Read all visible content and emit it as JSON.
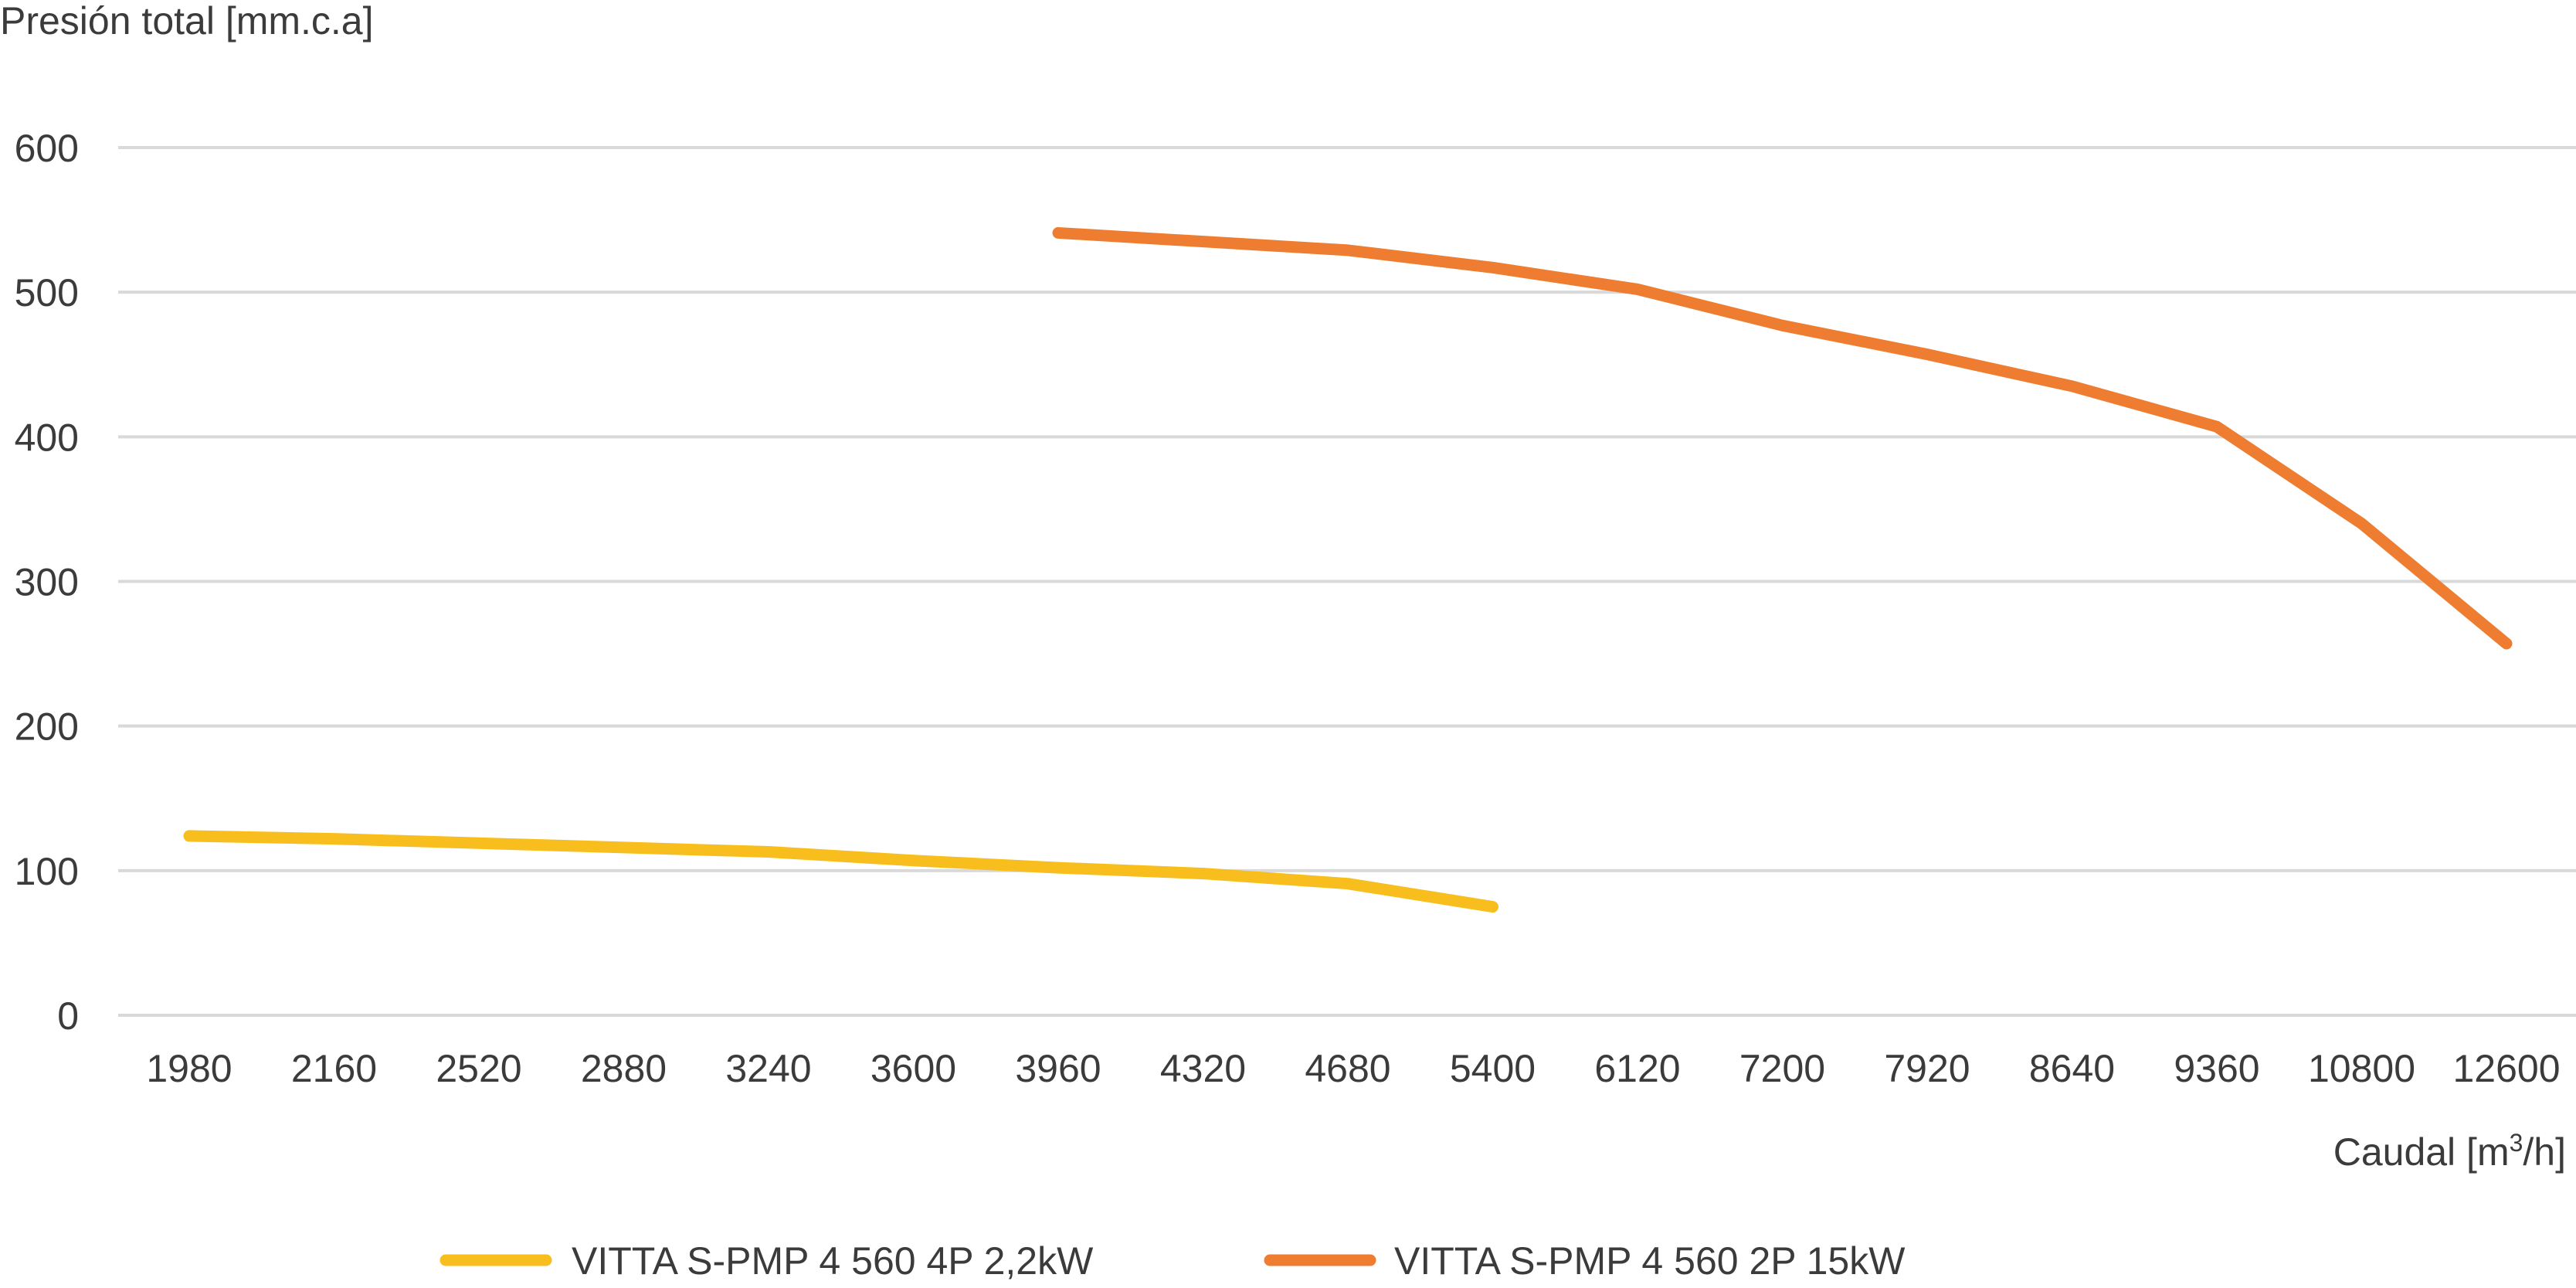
{
  "chart_data": {
    "type": "line",
    "ylabel": "Presión total [mm.c.a]",
    "xlabel": {
      "prefix": "Caudal [m",
      "superscript": "3",
      "suffix": "/h]"
    },
    "categories": [
      "1980",
      "2160",
      "2520",
      "2880",
      "3240",
      "3600",
      "3960",
      "4320",
      "4680",
      "5400",
      "6120",
      "7200",
      "7920",
      "8640",
      "9360",
      "10800",
      "12600"
    ],
    "y_ticks": [
      0,
      100,
      200,
      300,
      400,
      500,
      600
    ],
    "ylim": [
      0,
      600
    ],
    "grid": true,
    "legend_position": "bottom",
    "series": [
      {
        "name": "VITTA S-PMP 4 560 4P 2,2kW",
        "color": "#F7BE1D",
        "values": [
          124,
          122,
          119,
          116,
          113,
          107,
          102,
          98,
          91,
          75,
          null,
          null,
          null,
          null,
          null,
          null,
          null
        ]
      },
      {
        "name": "VITTA S-PMP 4 560 2P 15kW",
        "color": "#EE7D31",
        "values": [
          null,
          null,
          null,
          null,
          null,
          null,
          541,
          535,
          529,
          517,
          502,
          477,
          457,
          435,
          407,
          340,
          257
        ]
      }
    ]
  }
}
